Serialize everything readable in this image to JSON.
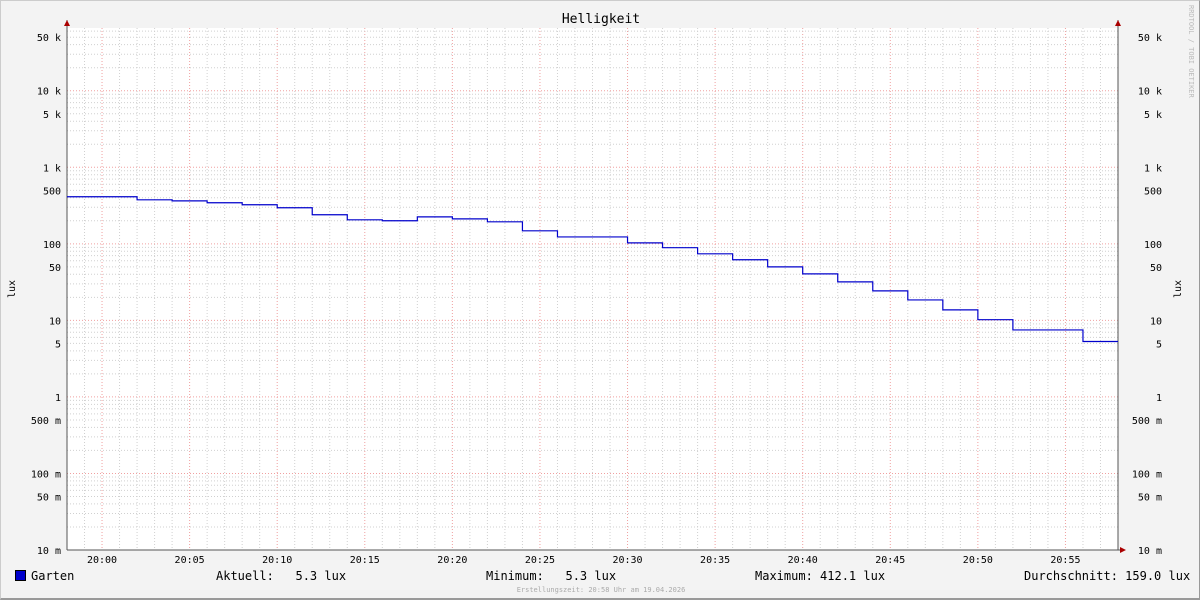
{
  "chart_data": {
    "type": "line",
    "title": "Helligkeit",
    "ylabel": "lux",
    "ylabel_right": "lux",
    "yscale": "log",
    "ylim": [
      0.01,
      66000
    ],
    "xlim": [
      "19:58",
      "20:58"
    ],
    "grid": true,
    "x_ticks": [
      "20:00",
      "20:05",
      "20:10",
      "20:15",
      "20:20",
      "20:25",
      "20:30",
      "20:35",
      "20:40",
      "20:45",
      "20:50",
      "20:55"
    ],
    "y_ticks": [
      {
        "value": 50000,
        "label": "50 k"
      },
      {
        "value": 10000,
        "label": "10 k"
      },
      {
        "value": 5000,
        "label": "5 k"
      },
      {
        "value": 1000,
        "label": "1 k"
      },
      {
        "value": 500,
        "label": "500"
      },
      {
        "value": 100,
        "label": "100"
      },
      {
        "value": 50,
        "label": "50"
      },
      {
        "value": 10,
        "label": "10"
      },
      {
        "value": 5,
        "label": "5"
      },
      {
        "value": 1,
        "label": "1"
      },
      {
        "value": 0.5,
        "label": "500 m"
      },
      {
        "value": 0.1,
        "label": "100 m"
      },
      {
        "value": 0.05,
        "label": "50 m"
      },
      {
        "value": 0.01,
        "label": "10 m"
      }
    ],
    "series": [
      {
        "name": "Garten",
        "color": "#0000cc",
        "step": true,
        "x": [
          "19:58",
          "20:02",
          "20:04",
          "20:06",
          "20:08",
          "20:10",
          "20:12",
          "20:14",
          "20:16",
          "20:18",
          "20:20",
          "20:22",
          "20:24",
          "20:26",
          "20:30",
          "20:32",
          "20:34",
          "20:36",
          "20:38",
          "20:40",
          "20:42",
          "20:44",
          "20:46",
          "20:48",
          "20:50",
          "20:52",
          "20:56"
        ],
        "values": [
          412.1,
          376,
          364,
          344,
          324,
          296,
          240,
          206,
          200,
          225,
          212,
          194,
          148,
          123,
          103,
          89,
          74,
          62,
          50,
          40.5,
          31.8,
          24.3,
          18.5,
          13.7,
          10.2,
          7.5,
          5.3
        ]
      }
    ]
  },
  "legend": {
    "series_name": "Garten",
    "current": "Aktuell:   5.3 lux",
    "minimum": "Minimum:   5.3 lux",
    "maximum": "Maximum: 412.1 lux",
    "average": "Durchschnitt: 159.0 lux"
  },
  "footer": "Erstellungszeit: 20:58 Uhr am 19.04.2026",
  "watermark": "RRDTOOL / TOBI OETIKER"
}
